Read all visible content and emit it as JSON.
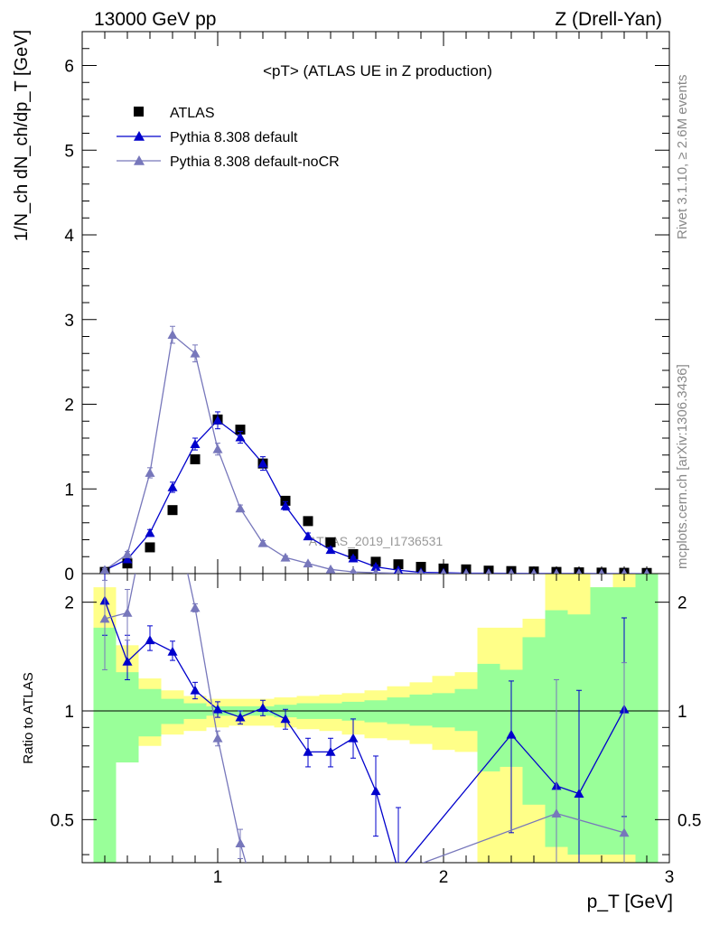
{
  "header": {
    "left": "13000 GeV pp",
    "right": "Z (Drell-Yan)"
  },
  "side_text": {
    "rivet": "Rivet 3.1.10, ≥ 2.6M events",
    "mcplots": "mcplots.cern.ch [arXiv:1306.3436]"
  },
  "chart_data": {
    "type": "scatter",
    "title": "<pT> (ATLAS UE in Z production)",
    "watermark": "ATLAS_2019_I1736531",
    "x": [
      0.5,
      0.6,
      0.7,
      0.8,
      0.9,
      1.0,
      1.1,
      1.2,
      1.3,
      1.4,
      1.5,
      1.6,
      1.7,
      1.8,
      1.9,
      2.0,
      2.1,
      2.2,
      2.3,
      2.4,
      2.5,
      2.6,
      2.7,
      2.8,
      2.9
    ],
    "xlim": [
      0.4,
      3.0
    ],
    "xlabel": "p_T [GeV]",
    "xticks": [
      "1",
      "2",
      "3"
    ],
    "main": {
      "ylabel": "1/N_ch dN_ch/dp_T [GeV]",
      "ylim": [
        0,
        6.4
      ],
      "yticks": [
        "0",
        "1",
        "2",
        "3",
        "4",
        "5",
        "6"
      ],
      "legend": [
        "ATLAS",
        "Pythia 8.308 default",
        "Pythia 8.308 default-noCR"
      ],
      "series": [
        {
          "name": "ATLAS",
          "marker": "square",
          "color": "#000000",
          "values": [
            0.02,
            0.12,
            0.31,
            0.75,
            1.35,
            1.82,
            1.7,
            1.3,
            0.86,
            0.62,
            0.37,
            0.23,
            0.14,
            0.11,
            0.08,
            0.06,
            0.05,
            0.035,
            0.03,
            0.025,
            0.02,
            0.015,
            0.012,
            0.01,
            0.008
          ]
        },
        {
          "name": "Pythia 8.308 default",
          "marker": "triangle",
          "color": "#0000cc",
          "values": [
            0.04,
            0.17,
            0.48,
            1.02,
            1.53,
            1.81,
            1.61,
            1.3,
            0.8,
            0.44,
            0.28,
            0.18,
            0.08,
            0.04,
            0.015,
            0.01,
            0.005,
            0.005,
            0.004,
            0.003,
            0.002,
            0.002,
            0.001,
            0.001,
            0.0
          ],
          "errors": [
            0.02,
            0.03,
            0.04,
            0.06,
            0.07,
            0.1,
            0.07,
            0.08,
            0.05,
            0.04,
            0.03,
            0.02,
            0.02,
            0.01,
            0.01,
            0.0,
            0.0,
            0.0,
            0.0,
            0.0,
            0.0,
            0.0,
            0.0,
            0.0,
            0.0
          ]
        },
        {
          "name": "Pythia 8.308 default-noCR",
          "marker": "triangle",
          "color": "#7777bb",
          "values": [
            0.04,
            0.23,
            1.19,
            2.82,
            2.6,
            1.47,
            0.77,
            0.36,
            0.19,
            0.12,
            0.05,
            0.02,
            0.01,
            0.005,
            0.002,
            0.001,
            0.0,
            0.0,
            0.0,
            0.0,
            0.0,
            0.0,
            0.0,
            0.0,
            0.0
          ],
          "errors": [
            0.02,
            0.03,
            0.06,
            0.1,
            0.1,
            0.07,
            0.04,
            0.03,
            0.02,
            0.01,
            0.01,
            0.01,
            0.0,
            0.0,
            0.0,
            0.0,
            0.0,
            0.0,
            0.0,
            0.0,
            0.0,
            0.0,
            0.0,
            0.0,
            0.0
          ]
        }
      ]
    },
    "ratio": {
      "ylabel": "Ratio to ATLAS",
      "yscale": "log",
      "ylim": [
        0.38,
        2.4
      ],
      "yticks": [
        "0.5",
        "1",
        "2"
      ],
      "band_edges": [
        0.45,
        0.55,
        0.65,
        0.75,
        0.85,
        0.95,
        1.05,
        1.15,
        1.25,
        1.35,
        1.45,
        1.55,
        1.65,
        1.75,
        1.85,
        1.95,
        2.05,
        2.15,
        2.25,
        2.35,
        2.45,
        2.55,
        2.65,
        2.75,
        2.85,
        2.95
      ],
      "green_band": {
        "color": "#99ff99",
        "lo": [
          0.38,
          0.72,
          0.85,
          0.92,
          0.95,
          0.97,
          0.97,
          0.97,
          0.96,
          0.95,
          0.95,
          0.94,
          0.93,
          0.92,
          0.91,
          0.9,
          0.88,
          0.68,
          0.7,
          0.55,
          0.42,
          0.4,
          0.4,
          0.4,
          0.38
        ],
        "hi": [
          1.7,
          1.28,
          1.15,
          1.08,
          1.05,
          1.03,
          1.03,
          1.03,
          1.04,
          1.05,
          1.05,
          1.06,
          1.07,
          1.09,
          1.11,
          1.12,
          1.15,
          1.35,
          1.3,
          1.6,
          1.9,
          1.85,
          2.2,
          2.2,
          2.4
        ]
      },
      "yellow_band": {
        "color": "#ffff88",
        "lo": [
          0.38,
          0.72,
          0.8,
          0.86,
          0.88,
          0.9,
          0.91,
          0.91,
          0.9,
          0.89,
          0.88,
          0.86,
          0.84,
          0.83,
          0.81,
          0.78,
          0.77,
          0.38,
          0.38,
          0.38,
          0.38,
          0.38,
          0.38,
          0.38,
          0.38
        ],
        "hi": [
          2.2,
          1.52,
          1.23,
          1.14,
          1.1,
          1.08,
          1.08,
          1.08,
          1.09,
          1.1,
          1.11,
          1.12,
          1.14,
          1.17,
          1.2,
          1.25,
          1.28,
          1.7,
          1.7,
          1.8,
          2.4,
          2.4,
          2.2,
          2.4,
          2.4
        ]
      },
      "series": [
        {
          "name": "Pythia 8.308 default",
          "color": "#0000cc",
          "points": [
            [
              0.5,
              2.02
            ],
            [
              0.6,
              1.37
            ],
            [
              0.7,
              1.57
            ],
            [
              0.8,
              1.46
            ],
            [
              0.9,
              1.14
            ],
            [
              1.0,
              1.01
            ],
            [
              1.1,
              0.96
            ],
            [
              1.2,
              1.02
            ],
            [
              1.3,
              0.95
            ],
            [
              1.4,
              0.77
            ],
            [
              1.5,
              0.77
            ],
            [
              1.6,
              0.84
            ],
            [
              1.7,
              0.6
            ],
            [
              1.8,
              0.36
            ],
            [
              2.3,
              0.86
            ],
            [
              2.5,
              0.62
            ],
            [
              2.6,
              0.59
            ],
            [
              2.8,
              1.01
            ]
          ],
          "err_lo": [
            0.4,
            0.15,
            0.1,
            0.08,
            0.06,
            0.05,
            0.04,
            0.05,
            0.06,
            0.07,
            0.07,
            0.1,
            0.15,
            0.15,
            0.4,
            0.3,
            0.3,
            0.5
          ],
          "err_hi": [
            0.4,
            0.25,
            0.15,
            0.1,
            0.06,
            0.05,
            0.04,
            0.05,
            0.06,
            0.07,
            0.07,
            0.11,
            0.15,
            0.18,
            0.35,
            0.6,
            0.55,
            0.8
          ]
        },
        {
          "name": "Pythia 8.308 default-noCR",
          "color": "#7777bb",
          "points": [
            [
              0.5,
              1.8
            ],
            [
              0.6,
              1.87
            ],
            [
              0.7,
              3.85
            ],
            [
              0.8,
              3.75
            ],
            [
              0.9,
              1.93
            ],
            [
              1.0,
              0.84
            ],
            [
              1.1,
              0.43
            ],
            [
              1.2,
              0.26
            ],
            [
              2.5,
              0.52
            ],
            [
              2.8,
              0.46
            ]
          ],
          "err_lo": [
            0.5,
            0.3,
            0.2,
            0.2,
            0.05,
            0.04,
            0.04,
            0.03,
            0.2,
            0.2
          ],
          "err_hi": [
            0.5,
            0.3,
            0.2,
            0.2,
            0.05,
            0.04,
            0.04,
            0.03,
            0.7,
            0.9
          ]
        }
      ]
    }
  }
}
